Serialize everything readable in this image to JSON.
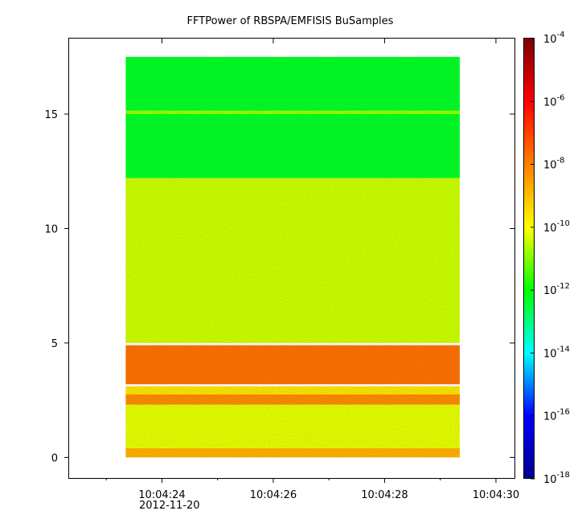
{
  "chart_data": {
    "type": "heatmap",
    "title": "FFTPower of RBSPA/EMFISIS  BuSamples",
    "xlabel": "",
    "ylabel": "",
    "x_axis": {
      "scale": "time",
      "range": [
        "10:04:22.333",
        "10:04:30.333"
      ],
      "major_ticks": [
        {
          "time": "10:04:24",
          "label": "10:04:24"
        },
        {
          "time": "10:04:26",
          "label": "10:04:26"
        },
        {
          "time": "10:04:28",
          "label": "10:04:28"
        },
        {
          "time": "10:04:30",
          "label": "10:04:30"
        }
      ],
      "minor_ticks": [
        "10:04:23",
        "10:04:25",
        "10:04:27",
        "10:04:29"
      ],
      "date_label": "2012-11-20"
    },
    "y_axis": {
      "scale": "linear",
      "range": [
        -0.9,
        18.3
      ],
      "major_ticks": [
        0,
        5,
        10,
        15
      ]
    },
    "data_extent": {
      "x": [
        "10:04:23.35",
        "10:04:29.35"
      ],
      "y": [
        0.0,
        17.5
      ]
    },
    "colorbar": {
      "scale": "log",
      "range": [
        1e-18,
        0.0001
      ],
      "ticks": [
        {
          "value": 0.0001,
          "base": "10",
          "exponent": "-4"
        },
        {
          "value": 1e-06,
          "base": "10",
          "exponent": "-6"
        },
        {
          "value": 1e-08,
          "base": "10",
          "exponent": "-8"
        },
        {
          "value": 1e-10,
          "base": "10",
          "exponent": "-10"
        },
        {
          "value": 1e-12,
          "base": "10",
          "exponent": "-12"
        },
        {
          "value": 1e-14,
          "base": "10",
          "exponent": "-14"
        },
        {
          "value": 1e-16,
          "base": "10",
          "exponent": "-16"
        },
        {
          "value": 1e-18,
          "base": "10",
          "exponent": "-18"
        }
      ],
      "colormap": [
        "#00008f",
        "#0000ff",
        "#00ffff",
        "#00ff00",
        "#ffff00",
        "#ff7f00",
        "#ff0000",
        "#7f0000"
      ]
    },
    "bands": [
      {
        "y_from": 12.2,
        "y_to": 17.5,
        "log_power": -12.3
      },
      {
        "y_from": 15.0,
        "y_to": 15.15,
        "log_power": -10.8
      },
      {
        "y_from": 5.0,
        "y_to": 12.2,
        "log_power": -10.4
      },
      {
        "y_from": 3.2,
        "y_to": 4.9,
        "log_power": -7.8
      },
      {
        "y_from": 2.7,
        "y_to": 3.1,
        "log_power": -9.6
      },
      {
        "y_from": 2.3,
        "y_to": 2.75,
        "log_power": -8.2
      },
      {
        "y_from": 0.4,
        "y_to": 2.3,
        "log_power": -10.2
      },
      {
        "y_from": 0.0,
        "y_to": 0.4,
        "log_power": -8.8
      }
    ]
  }
}
